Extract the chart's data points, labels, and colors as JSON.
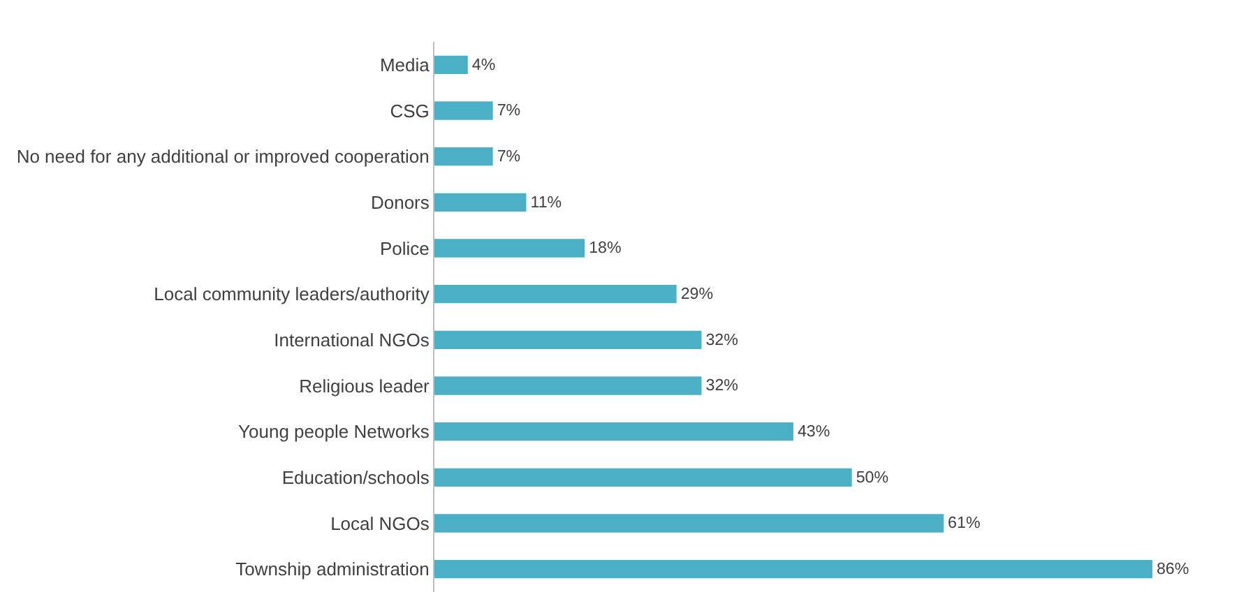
{
  "chart_data": {
    "type": "bar",
    "orientation": "horizontal",
    "color": "#4bafc6",
    "categories": [
      "Media",
      "CSG",
      "No need for any additional or improved cooperation",
      "Donors",
      "Police",
      "Local community leaders/authority",
      "International NGOs",
      "Religious leader",
      "Young people Networks",
      "Education/schools",
      "Local NGOs",
      "Township administration"
    ],
    "values": [
      4,
      7,
      7,
      11,
      18,
      29,
      32,
      32,
      43,
      50,
      61,
      86
    ],
    "value_labels": [
      "4%",
      "7%",
      "7%",
      "11%",
      "18%",
      "29%",
      "32%",
      "32%",
      "43%",
      "50%",
      "61%",
      "86%"
    ],
    "tick_labels": "y",
    "grid": false,
    "legend": false
  }
}
